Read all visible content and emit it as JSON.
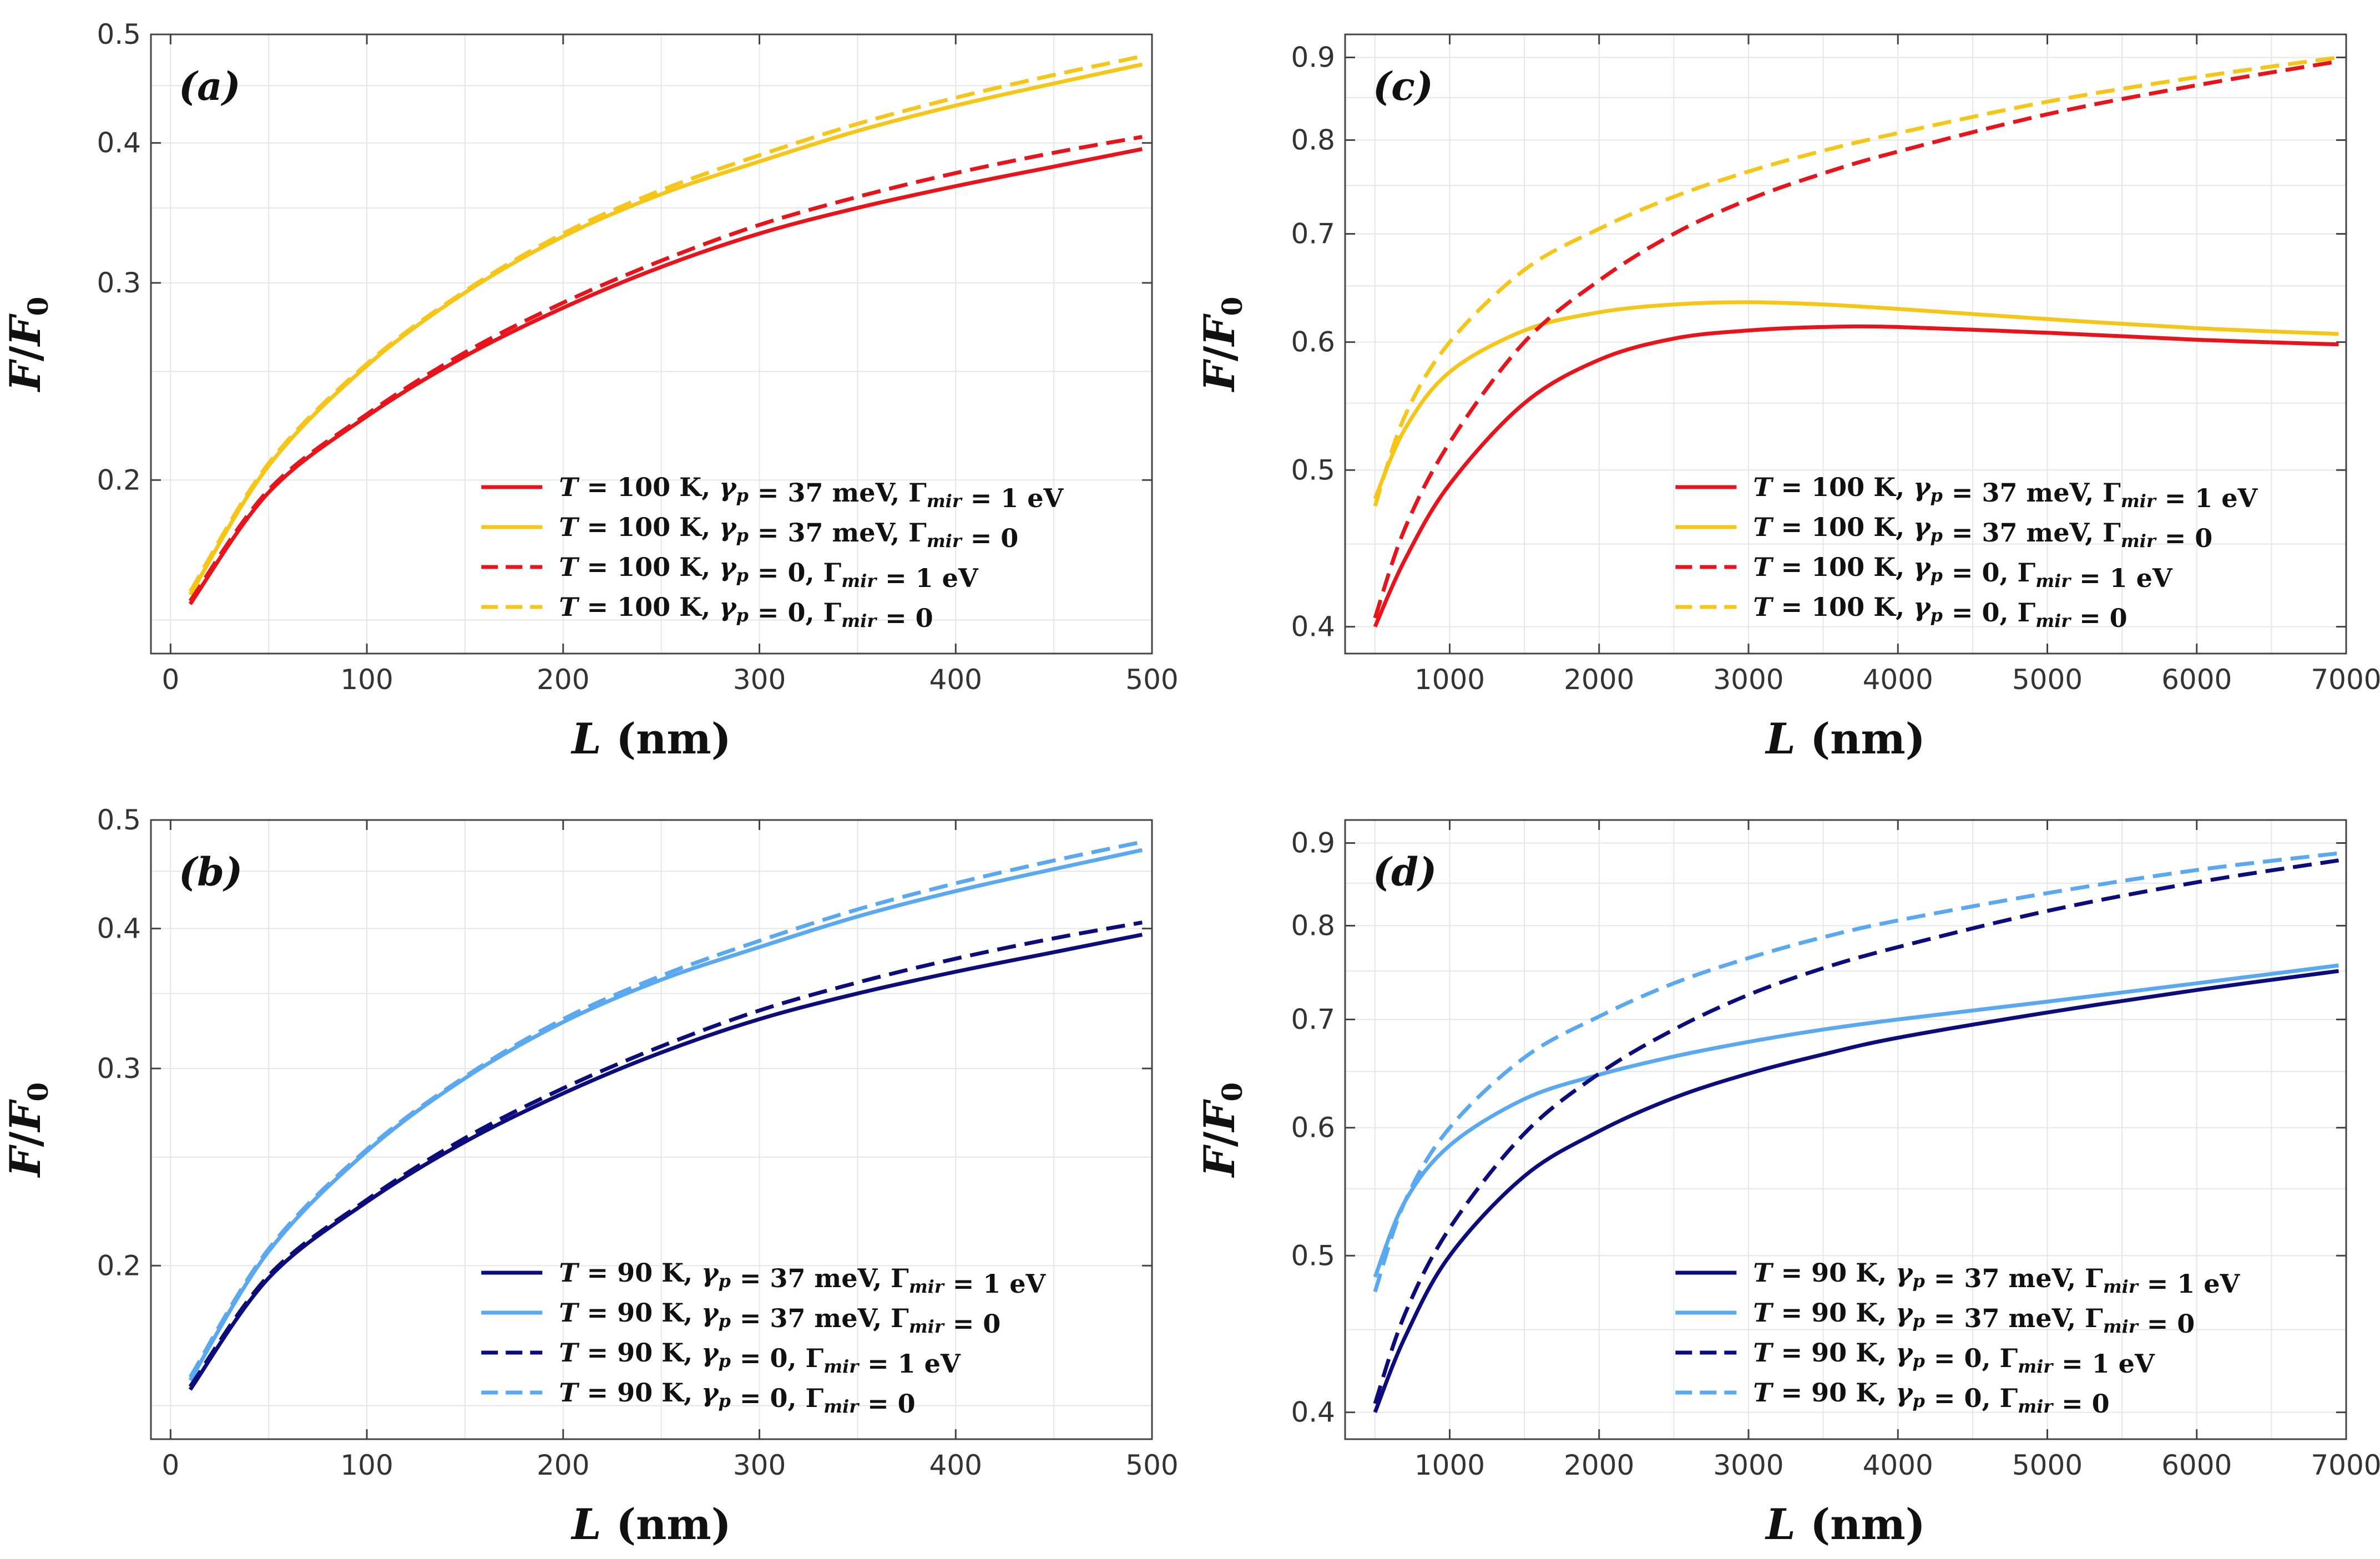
{
  "chart_data": [
    {
      "id": "a",
      "type": "line",
      "panel_label": "(a)",
      "xlabel": "L (nm)",
      "ylabel": "F/F0",
      "xlim": [
        -10,
        500
      ],
      "ylim": [
        0.14,
        0.5
      ],
      "yscale": "log",
      "xticks": [
        0,
        100,
        200,
        300,
        400,
        500
      ],
      "yticks": [
        0.2,
        0.3,
        0.4,
        0.5
      ],
      "grid": true,
      "legend_position": "bottom-right",
      "series": [
        {
          "name": "T = 100 K,  γp = 37 meV,  Γmir = 1 eV",
          "color": "#e8141b",
          "dash": "solid",
          "x": [
            10,
            50,
            100,
            150,
            200,
            250,
            300,
            350,
            400,
            450,
            495
          ],
          "y": [
            0.155,
            0.195,
            0.228,
            0.258,
            0.285,
            0.31,
            0.332,
            0.35,
            0.366,
            0.381,
            0.395
          ]
        },
        {
          "name": "T = 100 K,  γp = 37 meV,  Γmir = 0",
          "color": "#f5c518",
          "dash": "solid",
          "x": [
            10,
            50,
            100,
            150,
            200,
            250,
            300,
            350,
            400,
            450,
            495
          ],
          "y": [
            0.158,
            0.206,
            0.253,
            0.294,
            0.33,
            0.36,
            0.385,
            0.41,
            0.432,
            0.452,
            0.47
          ]
        },
        {
          "name": "T = 100 K,  γp = 0,  Γmir = 1 eV",
          "color": "#e8141b",
          "dash": "dashed",
          "x": [
            10,
            50,
            100,
            150,
            200,
            250,
            300,
            350,
            400,
            450,
            495
          ],
          "y": [
            0.156,
            0.196,
            0.229,
            0.26,
            0.288,
            0.314,
            0.338,
            0.358,
            0.376,
            0.392,
            0.405
          ]
        },
        {
          "name": "T = 100 K,  γp = 0,  Γmir = 0",
          "color": "#f5c518",
          "dash": "dashed",
          "x": [
            10,
            50,
            100,
            150,
            200,
            250,
            300,
            350,
            400,
            450,
            495
          ],
          "y": [
            0.159,
            0.207,
            0.254,
            0.295,
            0.332,
            0.363,
            0.39,
            0.416,
            0.439,
            0.46,
            0.478
          ]
        }
      ]
    },
    {
      "id": "b",
      "type": "line",
      "panel_label": "(b)",
      "xlabel": "L (nm)",
      "ylabel": "F/F0",
      "xlim": [
        -10,
        500
      ],
      "ylim": [
        0.14,
        0.5
      ],
      "yscale": "log",
      "xticks": [
        0,
        100,
        200,
        300,
        400,
        500
      ],
      "yticks": [
        0.2,
        0.3,
        0.4,
        0.5
      ],
      "grid": true,
      "legend_position": "bottom-right",
      "series": [
        {
          "name": "T = 90 K,  γp = 37 meV,  Γmir = 1 eV",
          "color": "#0c0c7a",
          "dash": "solid",
          "x": [
            10,
            50,
            100,
            150,
            200,
            250,
            300,
            350,
            400,
            450,
            495
          ],
          "y": [
            0.155,
            0.195,
            0.228,
            0.258,
            0.285,
            0.31,
            0.332,
            0.35,
            0.366,
            0.381,
            0.395
          ]
        },
        {
          "name": "T = 90 K,  γp = 37 meV,  Γmir = 0",
          "color": "#5aa9f0",
          "dash": "solid",
          "x": [
            10,
            50,
            100,
            150,
            200,
            250,
            300,
            350,
            400,
            450,
            495
          ],
          "y": [
            0.158,
            0.206,
            0.253,
            0.294,
            0.33,
            0.36,
            0.385,
            0.41,
            0.432,
            0.452,
            0.47
          ]
        },
        {
          "name": "T = 90 K,  γp = 0,  Γmir = 1 eV",
          "color": "#0c0c7a",
          "dash": "dashed",
          "x": [
            10,
            50,
            100,
            150,
            200,
            250,
            300,
            350,
            400,
            450,
            495
          ],
          "y": [
            0.156,
            0.196,
            0.229,
            0.26,
            0.288,
            0.314,
            0.338,
            0.358,
            0.376,
            0.392,
            0.405
          ]
        },
        {
          "name": "T = 90 K,  γp = 0,  Γmir = 0",
          "color": "#5aa9f0",
          "dash": "dashed",
          "x": [
            10,
            50,
            100,
            150,
            200,
            250,
            300,
            350,
            400,
            450,
            495
          ],
          "y": [
            0.159,
            0.207,
            0.254,
            0.295,
            0.332,
            0.363,
            0.39,
            0.416,
            0.439,
            0.46,
            0.478
          ]
        }
      ]
    },
    {
      "id": "c",
      "type": "line",
      "panel_label": "(c)",
      "xlabel": "L (nm)",
      "ylabel": "F/F0",
      "xlim": [
        300,
        7000
      ],
      "ylim": [
        0.385,
        0.93
      ],
      "yscale": "log",
      "xticks": [
        1000,
        2000,
        3000,
        4000,
        5000,
        6000,
        7000
      ],
      "yticks": [
        0.4,
        0.5,
        0.6,
        0.7,
        0.8,
        0.9
      ],
      "grid": true,
      "legend_position": "bottom-right",
      "series": [
        {
          "name": "T = 100 K,  γp = 37 meV,  Γmir = 1 eV",
          "color": "#e8141b",
          "dash": "solid",
          "x": [
            500,
            700,
            1000,
            1500,
            2000,
            2500,
            3000,
            3500,
            4000,
            5000,
            6000,
            6950
          ],
          "y": [
            0.4,
            0.44,
            0.49,
            0.55,
            0.585,
            0.603,
            0.61,
            0.613,
            0.613,
            0.608,
            0.602,
            0.598
          ]
        },
        {
          "name": "T = 100 K,  γp = 37 meV,  Γmir = 0",
          "color": "#f5c518",
          "dash": "solid",
          "x": [
            500,
            700,
            1000,
            1500,
            2000,
            2500,
            3000,
            3500,
            4000,
            5000,
            6000,
            6950
          ],
          "y": [
            0.48,
            0.53,
            0.575,
            0.61,
            0.626,
            0.633,
            0.635,
            0.633,
            0.629,
            0.62,
            0.612,
            0.607
          ]
        },
        {
          "name": "T = 100 K,  γp = 0,  Γmir = 1 eV",
          "color": "#e8141b",
          "dash": "dashed",
          "x": [
            500,
            700,
            1000,
            1500,
            2000,
            2500,
            3000,
            3500,
            4000,
            5000,
            6000,
            6950
          ],
          "y": [
            0.405,
            0.46,
            0.52,
            0.6,
            0.655,
            0.7,
            0.735,
            0.763,
            0.787,
            0.83,
            0.865,
            0.895
          ]
        },
        {
          "name": "T = 100 K,  γp = 0,  Γmir = 0",
          "color": "#f5c518",
          "dash": "dashed",
          "x": [
            500,
            700,
            1000,
            1500,
            2000,
            2500,
            3000,
            3500,
            4000,
            5000,
            6000,
            6950
          ],
          "y": [
            0.475,
            0.54,
            0.6,
            0.665,
            0.705,
            0.738,
            0.765,
            0.788,
            0.808,
            0.845,
            0.875,
            0.9
          ]
        }
      ]
    },
    {
      "id": "d",
      "type": "line",
      "panel_label": "(d)",
      "xlabel": "L (nm)",
      "ylabel": "F/F0",
      "xlim": [
        300,
        7000
      ],
      "ylim": [
        0.385,
        0.93
      ],
      "yscale": "log",
      "xticks": [
        1000,
        2000,
        3000,
        4000,
        5000,
        6000,
        7000
      ],
      "yticks": [
        0.4,
        0.5,
        0.6,
        0.7,
        0.8,
        0.9
      ],
      "grid": true,
      "legend_position": "bottom-right",
      "series": [
        {
          "name": "T = 90 K,  γp = 37 meV,  Γmir = 1 eV",
          "color": "#0c0c7a",
          "dash": "solid",
          "x": [
            500,
            700,
            1000,
            1500,
            2000,
            2500,
            3000,
            3500,
            4000,
            5000,
            6000,
            6950
          ],
          "y": [
            0.4,
            0.445,
            0.5,
            0.56,
            0.597,
            0.626,
            0.648,
            0.666,
            0.682,
            0.707,
            0.73,
            0.75
          ]
        },
        {
          "name": "T = 90 K,  γp = 37 meV,  Γmir = 0",
          "color": "#5aa9f0",
          "dash": "solid",
          "x": [
            500,
            700,
            1000,
            1500,
            2000,
            2500,
            3000,
            3500,
            4000,
            5000,
            6000,
            6950
          ],
          "y": [
            0.485,
            0.54,
            0.585,
            0.625,
            0.647,
            0.664,
            0.678,
            0.69,
            0.7,
            0.718,
            0.737,
            0.756
          ]
        },
        {
          "name": "T = 90 K,  γp = 0,  Γmir = 1 eV",
          "color": "#0c0c7a",
          "dash": "dashed",
          "x": [
            500,
            700,
            1000,
            1500,
            2000,
            2500,
            3000,
            3500,
            4000,
            5000,
            6000,
            6950
          ],
          "y": [
            0.405,
            0.46,
            0.52,
            0.595,
            0.648,
            0.69,
            0.725,
            0.753,
            0.776,
            0.817,
            0.851,
            0.878
          ]
        },
        {
          "name": "T = 90 K,  γp = 0,  Γmir = 0",
          "color": "#5aa9f0",
          "dash": "dashed",
          "x": [
            500,
            700,
            1000,
            1500,
            2000,
            2500,
            3000,
            3500,
            4000,
            5000,
            6000,
            6950
          ],
          "y": [
            0.475,
            0.54,
            0.6,
            0.663,
            0.703,
            0.737,
            0.764,
            0.787,
            0.806,
            0.838,
            0.866,
            0.887
          ]
        }
      ]
    }
  ]
}
